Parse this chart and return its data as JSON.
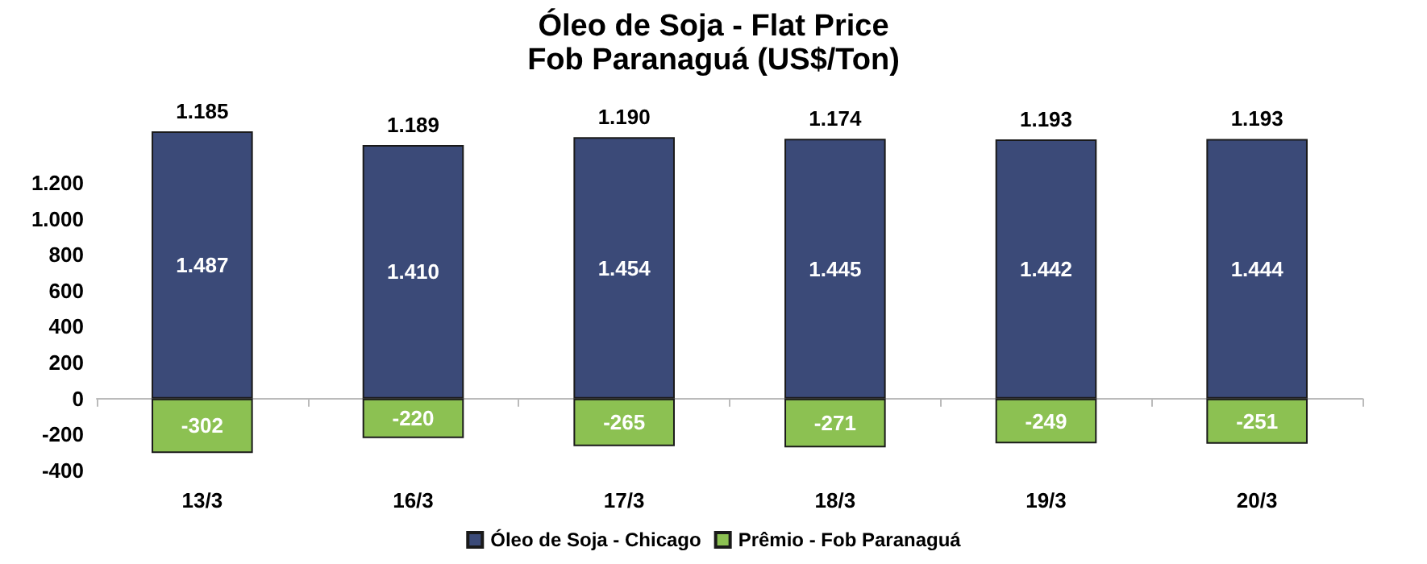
{
  "chart_data": {
    "type": "bar",
    "title": "Óleo de Soja - Flat Price",
    "subtitle": "Fob Paranaguá (US$/Ton)",
    "categories": [
      "13/3",
      "16/3",
      "17/3",
      "18/3",
      "19/3",
      "20/3"
    ],
    "stacked": true,
    "series": [
      {
        "name": "Óleo de Soja - Chicago",
        "color": "#3b4a78",
        "values": [
          1487,
          1410,
          1454,
          1445,
          1442,
          1444
        ],
        "value_labels": [
          "1.487",
          "1.410",
          "1.454",
          "1.445",
          "1.442",
          "1.444"
        ]
      },
      {
        "name": "Prêmio - Fob Paranaguá",
        "color": "#8cc152",
        "values": [
          -302,
          -220,
          -265,
          -271,
          -249,
          -251
        ],
        "value_labels": [
          "-302",
          "-220",
          "-265",
          "-271",
          "-249",
          "-251"
        ]
      }
    ],
    "totals": [
      "1.185",
      "1.189",
      "1.190",
      "1.174",
      "1.193",
      "1.193"
    ],
    "ylim": [
      -400,
      1500
    ],
    "yticks": [
      {
        "value": -400,
        "label": "-400"
      },
      {
        "value": -200,
        "label": "-200"
      },
      0,
      200,
      400,
      600,
      800,
      {
        "value": 1000,
        "label": "1.000"
      },
      {
        "value": 1200,
        "label": "1.200"
      }
    ],
    "legend": "bottom"
  }
}
